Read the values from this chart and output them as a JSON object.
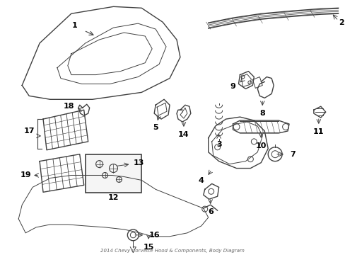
{
  "title": "2014 Chevy Corvette Hood & Components, Body Diagram",
  "background_color": "#ffffff",
  "line_color": "#404040",
  "label_color": "#000000",
  "fig_width": 4.89,
  "fig_height": 3.6,
  "dpi": 100
}
